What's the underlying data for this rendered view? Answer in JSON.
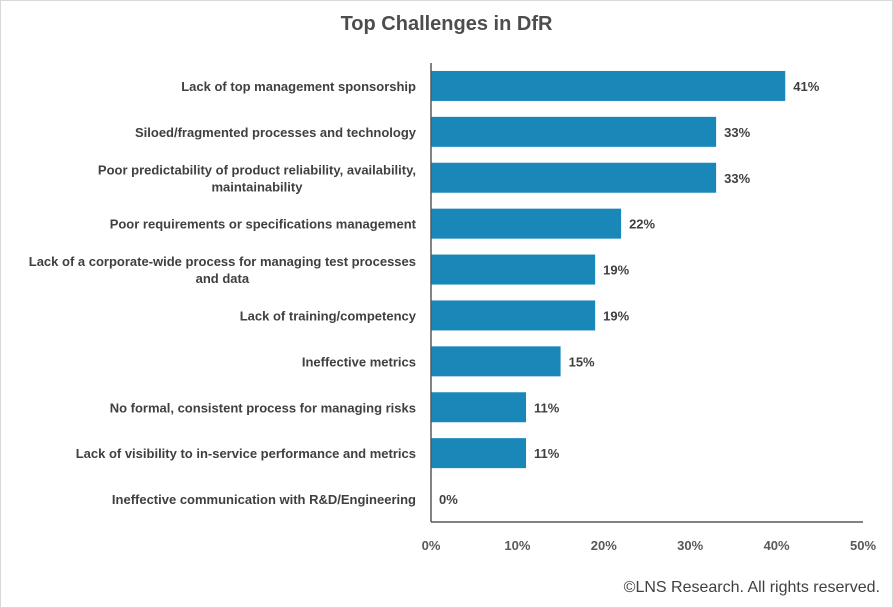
{
  "chart_data": {
    "type": "bar",
    "orientation": "horizontal",
    "title": "Top Challenges in DfR",
    "categories": [
      [
        "Lack of top management sponsorship"
      ],
      [
        "Siloed/fragmented processes and technology"
      ],
      [
        "Poor predictability of product reliability, availability,",
        "maintainability"
      ],
      [
        "Poor requirements or specifications management"
      ],
      [
        "Lack of a corporate-wide process for managing test processes",
        "and data"
      ],
      [
        "Lack of training/competency"
      ],
      [
        "Ineffective metrics"
      ],
      [
        "No formal, consistent process for managing risks"
      ],
      [
        "Lack of visibility to in-service performance and metrics"
      ],
      [
        "Ineffective communication with R&D/Engineering"
      ]
    ],
    "values": [
      41,
      33,
      33,
      22,
      19,
      19,
      15,
      11,
      11,
      0
    ],
    "data_labels": [
      "41%",
      "33%",
      "33%",
      "22%",
      "19%",
      "19%",
      "15%",
      "11%",
      "11%",
      "0%"
    ],
    "xlim": [
      0,
      50
    ],
    "xticks": [
      0,
      10,
      20,
      30,
      40,
      50
    ],
    "xtick_labels": [
      "0%",
      "10%",
      "20%",
      "30%",
      "40%",
      "50%"
    ],
    "xlabel": "",
    "ylabel": "",
    "grid": false,
    "bar_color": "#1a87b9"
  },
  "footer": {
    "credit": "©LNS Research.   All rights reserved."
  }
}
